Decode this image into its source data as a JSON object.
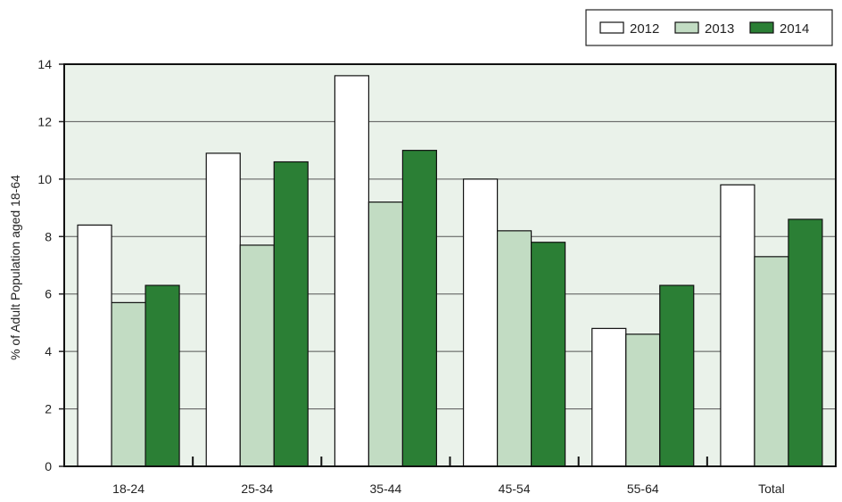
{
  "chart_data": {
    "type": "bar",
    "title": "",
    "xlabel": "",
    "ylabel": "% of  Adult Population aged 18-64",
    "ylim": [
      0,
      14
    ],
    "yticks": [
      "0",
      "2",
      "4",
      "6",
      "8",
      "10",
      "12",
      "14"
    ],
    "grid": true,
    "legend_position": "top-right",
    "categories": [
      "18-24",
      "25-34",
      "35-44",
      "45-54",
      "55-64",
      "Total"
    ],
    "series": [
      {
        "name": "2012",
        "color": "#ffffff",
        "values": [
          8.4,
          10.9,
          13.6,
          10.0,
          4.8,
          9.8
        ]
      },
      {
        "name": "2013",
        "color": "#c2dcc3",
        "values": [
          5.7,
          7.7,
          9.2,
          8.2,
          4.6,
          7.3
        ]
      },
      {
        "name": "2014",
        "color": "#2b7f35",
        "values": [
          6.3,
          10.6,
          11.0,
          7.8,
          6.3,
          8.6
        ]
      }
    ],
    "plot_background": "#eaf2ea"
  }
}
